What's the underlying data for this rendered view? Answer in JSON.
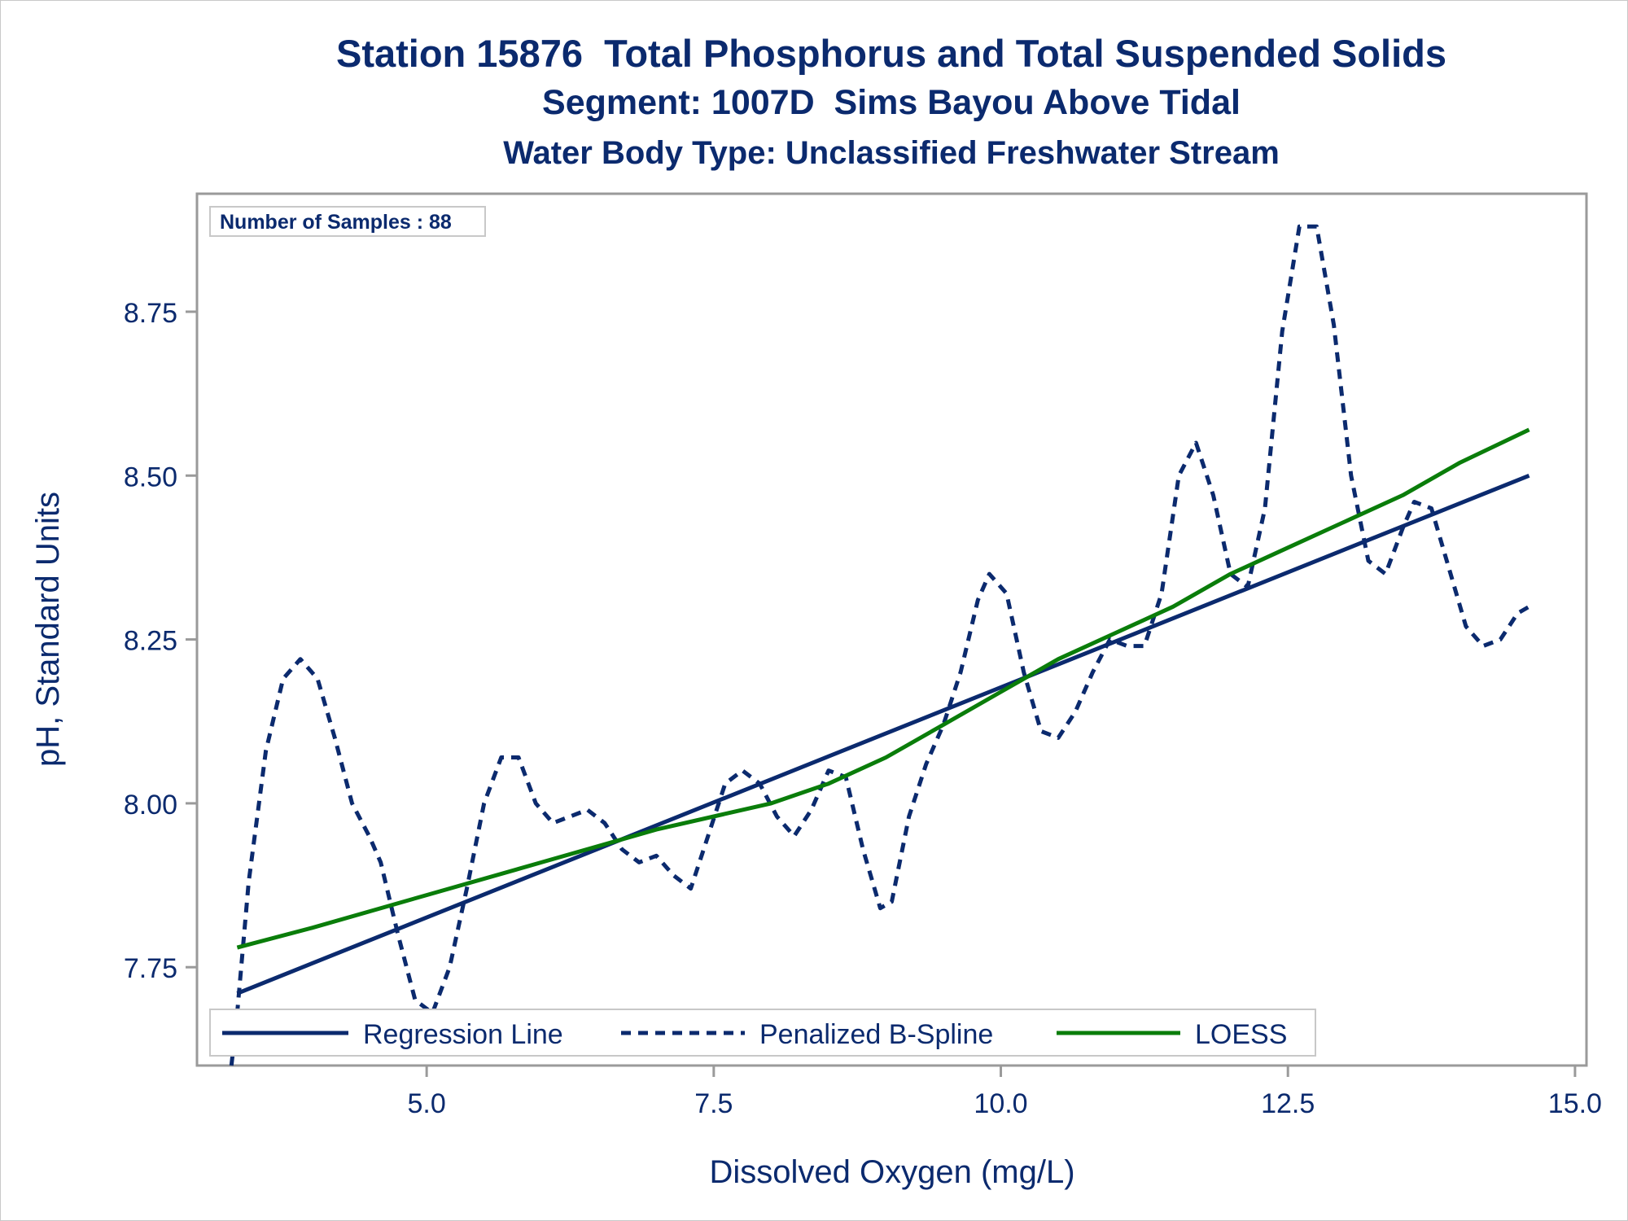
{
  "titles": {
    "line1": "Station 15876  Total Phosphorus and Total Suspended Solids",
    "line2": "Segment: 1007D  Sims Bayou Above Tidal",
    "line3": "Water Body Type: Unclassified Freshwater Stream"
  },
  "colors": {
    "text": "#0b2a6e",
    "regression": "#0b2a6e",
    "spline": "#0b2a6e",
    "loess": "#0a7d0a",
    "axis": "#9a9a9a"
  },
  "chart_data": {
    "type": "line",
    "xlabel": "Dissolved Oxygen (mg/L)",
    "ylabel": "pH, Standard Units",
    "xlim": [
      3.0,
      15.1
    ],
    "ylim": [
      7.6,
      8.93
    ],
    "xticks": [
      5.0,
      7.5,
      10.0,
      12.5,
      15.0
    ],
    "xtick_labels": [
      "5.0",
      "7.5",
      "10.0",
      "12.5",
      "15.0"
    ],
    "yticks": [
      7.75,
      8.0,
      8.25,
      8.5,
      8.75
    ],
    "ytick_labels": [
      "7.75",
      "8.00",
      "8.25",
      "8.50",
      "8.75"
    ],
    "inset": "Number of Samples : 88",
    "legend_position": "bottom-inside",
    "series": [
      {
        "name": "Regression Line",
        "style": "solid",
        "x": [
          3.35,
          14.6
        ],
        "y": [
          7.71,
          8.5
        ]
      },
      {
        "name": "Penalized B-Spline",
        "style": "dashed",
        "x": [
          3.3,
          3.35,
          3.45,
          3.6,
          3.75,
          3.9,
          4.05,
          4.2,
          4.35,
          4.5,
          4.6,
          4.75,
          4.9,
          5.05,
          5.2,
          5.35,
          5.5,
          5.65,
          5.8,
          5.95,
          6.1,
          6.25,
          6.4,
          6.55,
          6.7,
          6.85,
          7.0,
          7.15,
          7.3,
          7.45,
          7.6,
          7.75,
          7.9,
          8.05,
          8.2,
          8.35,
          8.5,
          8.65,
          8.8,
          8.95,
          9.05,
          9.2,
          9.35,
          9.5,
          9.65,
          9.8,
          9.9,
          10.05,
          10.2,
          10.35,
          10.5,
          10.65,
          10.8,
          10.95,
          11.1,
          11.25,
          11.4,
          11.55,
          11.7,
          11.85,
          12.0,
          12.15,
          12.3,
          12.45,
          12.6,
          12.75,
          12.9,
          13.05,
          13.2,
          13.35,
          13.5,
          13.6,
          13.75,
          13.9,
          14.05,
          14.2,
          14.35,
          14.5,
          14.6
        ],
        "y": [
          7.6,
          7.68,
          7.88,
          8.08,
          8.19,
          8.22,
          8.19,
          8.1,
          8.0,
          7.95,
          7.91,
          7.8,
          7.7,
          7.68,
          7.75,
          7.87,
          8.0,
          8.07,
          8.07,
          8.0,
          7.97,
          7.98,
          7.99,
          7.97,
          7.93,
          7.91,
          7.92,
          7.89,
          7.87,
          7.95,
          8.03,
          8.05,
          8.03,
          7.98,
          7.95,
          7.99,
          8.05,
          8.04,
          7.93,
          7.84,
          7.85,
          7.98,
          8.06,
          8.12,
          8.2,
          8.31,
          8.35,
          8.32,
          8.2,
          8.11,
          8.1,
          8.14,
          8.2,
          8.25,
          8.24,
          8.24,
          8.32,
          8.5,
          8.55,
          8.47,
          8.35,
          8.33,
          8.45,
          8.72,
          8.88,
          8.88,
          8.73,
          8.5,
          8.37,
          8.35,
          8.42,
          8.46,
          8.45,
          8.36,
          8.27,
          8.24,
          8.25,
          8.29,
          8.3
        ]
      },
      {
        "name": "LOESS",
        "style": "solid",
        "x": [
          3.35,
          4.0,
          5.0,
          6.0,
          7.0,
          8.0,
          8.5,
          9.0,
          9.5,
          10.0,
          10.5,
          11.0,
          11.5,
          12.0,
          12.5,
          13.0,
          13.5,
          14.0,
          14.6
        ],
        "y": [
          7.78,
          7.81,
          7.86,
          7.91,
          7.96,
          8.0,
          8.03,
          8.07,
          8.12,
          8.17,
          8.22,
          8.26,
          8.3,
          8.35,
          8.39,
          8.43,
          8.47,
          8.52,
          8.57
        ]
      }
    ]
  }
}
